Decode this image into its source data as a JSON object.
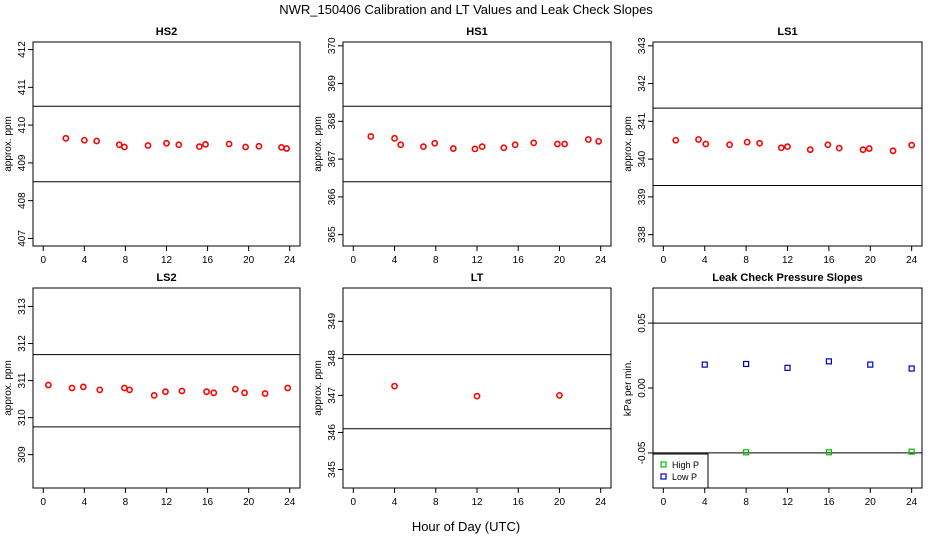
{
  "figure": {
    "title": "NWR_150406  Calibration and LT Values and Leak Check Slopes",
    "xlabel": "Hour of Day (UTC)"
  },
  "colors": {
    "cal": "#ff0000",
    "high_p": "#00c000",
    "low_p": "#0000cc",
    "ink": "#000000"
  },
  "chart_data": [
    {
      "type": "scatter",
      "title": "HS2",
      "ylabel": "approx. ppm",
      "xlim": [
        -1,
        25
      ],
      "ylim": [
        406.8,
        412.2
      ],
      "xticks": [
        "0",
        "4",
        "8",
        "12",
        "16",
        "20",
        "24"
      ],
      "xtick_values": [
        0,
        4,
        8,
        12,
        16,
        20,
        24
      ],
      "yticks": [
        "407",
        "408",
        "409",
        "410",
        "411",
        "412"
      ],
      "ytick_values": [
        407,
        408,
        409,
        410,
        411,
        412
      ],
      "hlines": [
        410.5,
        408.5
      ],
      "series": [
        {
          "color": "#ff0000",
          "x": [
            2.2,
            4.0,
            5.2,
            7.4,
            7.9,
            10.2,
            12.0,
            13.2,
            15.2,
            15.8,
            18.1,
            19.7,
            21.0,
            23.2,
            23.7
          ],
          "y": [
            409.65,
            409.6,
            409.58,
            409.48,
            409.42,
            409.46,
            409.52,
            409.48,
            409.43,
            409.49,
            409.5,
            409.42,
            409.44,
            409.41,
            409.38
          ]
        }
      ]
    },
    {
      "type": "scatter",
      "title": "HS1",
      "ylabel": "approx. ppm",
      "xlim": [
        -1,
        25
      ],
      "ylim": [
        364.7,
        370.1
      ],
      "xticks": [
        "0",
        "4",
        "8",
        "12",
        "16",
        "20",
        "24"
      ],
      "xtick_values": [
        0,
        4,
        8,
        12,
        16,
        20,
        24
      ],
      "yticks": [
        "365",
        "366",
        "367",
        "368",
        "369",
        "370"
      ],
      "ytick_values": [
        365,
        366,
        367,
        368,
        369,
        370
      ],
      "hlines": [
        368.4,
        366.4
      ],
      "series": [
        {
          "color": "#ff0000",
          "x": [
            1.7,
            4.0,
            4.6,
            6.8,
            7.9,
            9.7,
            11.8,
            12.5,
            14.6,
            15.7,
            17.5,
            19.8,
            20.5,
            22.8,
            23.8
          ],
          "y": [
            367.6,
            367.55,
            367.38,
            367.33,
            367.42,
            367.28,
            367.27,
            367.33,
            367.3,
            367.38,
            367.43,
            367.4,
            367.4,
            367.52,
            367.47
          ]
        }
      ]
    },
    {
      "type": "scatter",
      "title": "LS1",
      "ylabel": "approx. ppm",
      "xlim": [
        -1,
        25
      ],
      "ylim": [
        337.7,
        343.1
      ],
      "xticks": [
        "0",
        "4",
        "8",
        "12",
        "16",
        "20",
        "24"
      ],
      "xtick_values": [
        0,
        4,
        8,
        12,
        16,
        20,
        24
      ],
      "yticks": [
        "338",
        "339",
        "340",
        "341",
        "342",
        "343"
      ],
      "ytick_values": [
        338,
        339,
        340,
        341,
        342,
        343
      ],
      "hlines": [
        341.35,
        339.3
      ],
      "series": [
        {
          "color": "#ff0000",
          "x": [
            1.2,
            3.4,
            4.1,
            6.4,
            8.1,
            9.3,
            11.4,
            12.0,
            14.2,
            15.9,
            17.0,
            19.3,
            19.9,
            22.2,
            24.0
          ],
          "y": [
            340.5,
            340.52,
            340.4,
            340.38,
            340.45,
            340.42,
            340.3,
            340.33,
            340.25,
            340.38,
            340.29,
            340.25,
            340.28,
            340.22,
            340.37
          ]
        }
      ]
    },
    {
      "type": "scatter",
      "title": "LS2",
      "ylabel": "approx. ppm",
      "xlim": [
        -1,
        25
      ],
      "ylim": [
        308.1,
        313.5
      ],
      "xticks": [
        "0",
        "4",
        "8",
        "12",
        "16",
        "20",
        "24"
      ],
      "xtick_values": [
        0,
        4,
        8,
        12,
        16,
        20,
        24
      ],
      "yticks": [
        "309",
        "310",
        "311",
        "312",
        "313"
      ],
      "ytick_values": [
        309,
        310,
        311,
        312,
        313
      ],
      "hlines": [
        311.7,
        309.75
      ],
      "series": [
        {
          "color": "#ff0000",
          "x": [
            0.5,
            2.8,
            3.9,
            5.5,
            7.9,
            8.4,
            10.8,
            11.9,
            13.5,
            15.9,
            16.6,
            18.7,
            19.6,
            21.6,
            23.8
          ],
          "y": [
            310.88,
            310.8,
            310.83,
            310.75,
            310.8,
            310.75,
            310.6,
            310.7,
            310.72,
            310.7,
            310.67,
            310.77,
            310.67,
            310.65,
            310.8
          ]
        }
      ]
    },
    {
      "type": "scatter",
      "title": "LT",
      "ylabel": "approx. ppm",
      "xlim": [
        -1,
        25
      ],
      "ylim": [
        344.5,
        349.9
      ],
      "xticks": [
        "0",
        "4",
        "8",
        "12",
        "16",
        "20",
        "24"
      ],
      "xtick_values": [
        0,
        4,
        8,
        12,
        16,
        20,
        24
      ],
      "yticks": [
        "345",
        "346",
        "347",
        "348",
        "349"
      ],
      "ytick_values": [
        345,
        346,
        347,
        348,
        349
      ],
      "hlines": [
        348.1,
        346.1
      ],
      "series": [
        {
          "color": "#ff0000",
          "x": [
            4.0,
            12.0,
            20.0
          ],
          "y": [
            347.25,
            346.98,
            347.0
          ]
        }
      ]
    },
    {
      "type": "scatter",
      "title": "Leak Check Pressure Slopes",
      "ylabel": "kPa per min.",
      "xlim": [
        -1,
        25
      ],
      "ylim": [
        -0.077,
        0.077
      ],
      "xticks": [
        "0",
        "4",
        "8",
        "12",
        "16",
        "20",
        "24"
      ],
      "xtick_values": [
        0,
        4,
        8,
        12,
        16,
        20,
        24
      ],
      "yticks": [
        "-0.05",
        "0.00",
        "0.05"
      ],
      "ytick_values": [
        -0.05,
        0,
        0.05
      ],
      "hlines": [
        0.05,
        -0.05
      ],
      "legend": "bottom-left",
      "series": [
        {
          "name": "High P",
          "color": "#00c000",
          "x": [
            8,
            16,
            24
          ],
          "y": [
            -0.0495,
            -0.0495,
            -0.049
          ]
        },
        {
          "name": "Low P",
          "color": "#0000cc",
          "x": [
            4,
            8,
            12,
            16,
            20,
            24
          ],
          "y": [
            0.018,
            0.0185,
            0.0155,
            0.0205,
            0.018,
            0.015
          ]
        }
      ]
    }
  ]
}
